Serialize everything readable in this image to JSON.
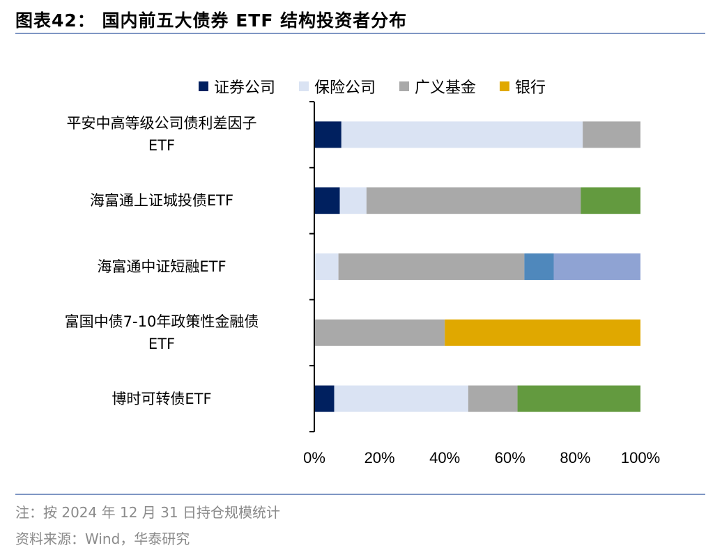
{
  "title": "图表42： 国内前五大债券 ETF 结构投资者分布",
  "footnote": "注：按 2024 年 12 月 31 日持仓规模统计",
  "source": "资料来源：Wind，华泰研究",
  "chart_data": {
    "type": "bar",
    "orientation": "horizontal",
    "stacked": "percent",
    "categories": [
      "平安中高等级公司债利差因子ETF",
      "海富通上证城投债ETF",
      "海富通中证短融ETF",
      "富国中债7-10年政策性金融债ETF",
      "博时可转债ETF"
    ],
    "xlim": [
      0,
      100
    ],
    "xticks": [
      "0%",
      "20%",
      "40%",
      "60%",
      "80%",
      "100%"
    ],
    "legend_position": "top",
    "grid": false,
    "series": [
      {
        "name": "证券公司",
        "color": "#00205f",
        "values": [
          8.3,
          7.8,
          0,
          0,
          6.1
        ]
      },
      {
        "name": "保险公司",
        "color": "#dae3f3",
        "values": [
          74.0,
          8.2,
          7.4,
          0,
          41.1
        ]
      },
      {
        "name": "广义基金",
        "color": "#a9a9a9",
        "values": [
          17.7,
          65.7,
          57.0,
          40.0,
          15.1
        ]
      },
      {
        "name": "银行",
        "color": "#e0a800",
        "values": [
          0,
          0,
          0,
          60.0,
          0
        ]
      },
      {
        "color": "#639a3f",
        "values": [
          0,
          18.3,
          0,
          0,
          37.7
        ]
      },
      {
        "color": "#4f88bc",
        "values": [
          0,
          0,
          9.0,
          0,
          0
        ]
      },
      {
        "color": "#8fa3d3",
        "values": [
          0,
          0,
          26.6,
          0,
          0
        ]
      }
    ]
  }
}
